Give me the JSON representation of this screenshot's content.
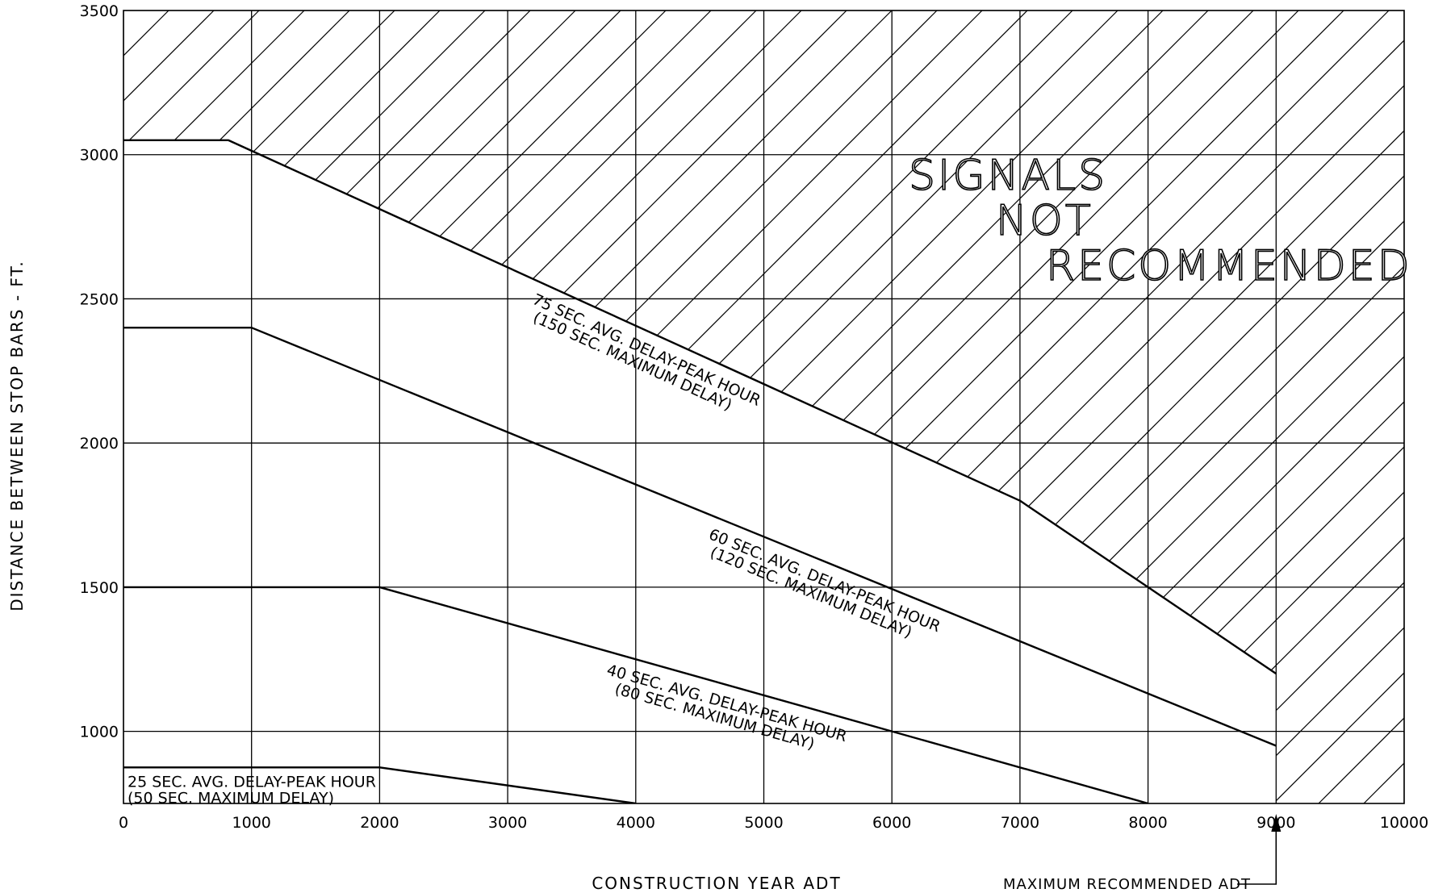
{
  "chart_data": {
    "type": "line",
    "xlabel": "CONSTRUCTION YEAR ADT",
    "ylabel": "DISTANCE BETWEEN STOP BARS - FT.",
    "xlim": [
      0,
      10000
    ],
    "ylim": [
      750,
      3500
    ],
    "x_ticks": [
      "0",
      "1000",
      "2000",
      "3000",
      "4000",
      "5000",
      "6000",
      "7000",
      "8000",
      "9000",
      "10000"
    ],
    "y_ticks": [
      "1000",
      "1500",
      "2000",
      "2500",
      "3000",
      "3500"
    ],
    "grid": true,
    "series": [
      {
        "name": "75 SEC. AVG. DELAY-PEAK HOUR",
        "name2": "(150 SEC. MAXIMUM DELAY)",
        "points": [
          [
            0,
            3050
          ],
          [
            820,
            3050
          ],
          [
            7000,
            1800
          ],
          [
            9000,
            1200
          ]
        ]
      },
      {
        "name": "60 SEC. AVG. DELAY-PEAK HOUR",
        "name2": "(120 SEC. MAXIMUM DELAY)",
        "points": [
          [
            0,
            2400
          ],
          [
            1000,
            2400
          ],
          [
            9000,
            950
          ]
        ]
      },
      {
        "name": "40 SEC. AVG. DELAY-PEAK HOUR",
        "name2": "(80 SEC. MAXIMUM DELAY)",
        "points": [
          [
            0,
            1500
          ],
          [
            2000,
            1500
          ],
          [
            8000,
            750
          ]
        ]
      },
      {
        "name": "25 SEC. AVG. DELAY-PEAK HOUR",
        "name2": "(50 SEC. MAXIMUM DELAY)",
        "points": [
          [
            0,
            875
          ],
          [
            2000,
            875
          ],
          [
            4000,
            750
          ]
        ]
      }
    ],
    "region_label": [
      "SIGNALS",
      "NOT",
      "RECOMMENDED"
    ],
    "annotation": {
      "text": "MAXIMUM RECOMMENDED ADT",
      "x": 9000
    }
  }
}
